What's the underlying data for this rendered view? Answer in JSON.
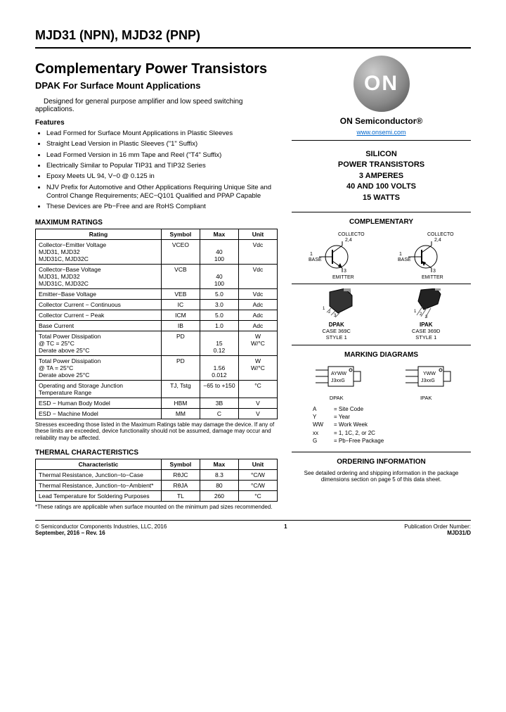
{
  "header": {
    "part_number": "MJD31 (NPN), MJD32 (PNP)",
    "title": "Complementary Power Transistors",
    "subtitle": "DPAK For Surface Mount Applications",
    "intro": "Designed for general purpose amplifier and low speed switching applications.",
    "features_label": "Features",
    "features": [
      "Lead Formed for Surface Mount Applications in Plastic Sleeves",
      "Straight Lead Version in Plastic Sleeves (\"1\" Suffix)",
      "Lead Formed Version in 16 mm Tape and Reel (\"T4\" Suffix)",
      "Electrically Similar to Popular TIP31 and TIP32 Series",
      "Epoxy Meets UL 94, V−0 @ 0.125 in",
      "NJV Prefix for Automotive and Other Applications Requiring Unique Site and Control Change Requirements; AEC−Q101 Qualified and PPAP Capable",
      "These Devices are Pb−Free and are RoHS Compliant"
    ]
  },
  "logo": {
    "text": "ON",
    "brand": "ON Semiconductor®",
    "url": "www.onsemi.com"
  },
  "spec_box": {
    "l1": "SILICON",
    "l2": "POWER TRANSISTORS",
    "l3": "3 AMPERES",
    "l4": "40 AND 100 VOLTS",
    "l5": "15 WATTS"
  },
  "complementary": {
    "label": "COMPLEMENTARY",
    "collector": "COLLECTOR",
    "base": "BASE",
    "emitter": "EMITTER",
    "pin24": "2,4",
    "pin1": "1",
    "pin3": "3"
  },
  "packages": {
    "dpak": {
      "name": "DPAK",
      "case": "CASE 369C",
      "style": "STYLE 1"
    },
    "ipak": {
      "name": "IPAK",
      "case": "CASE 369D",
      "style": "STYLE 1"
    }
  },
  "marking": {
    "label": "MARKING DIAGRAMS",
    "dpak_top": "AYWW",
    "dpak_bot": "J3xxG",
    "ipak_top": "YWW",
    "ipak_bot": "J3xxG",
    "dpak_name": "DPAK",
    "ipak_name": "IPAK",
    "legend": [
      {
        "k": "A",
        "v": "= Site Code"
      },
      {
        "k": "Y",
        "v": "= Year"
      },
      {
        "k": "WW",
        "v": "= Work Week"
      },
      {
        "k": "xx",
        "v": "= 1, 1C, 2, or 2C"
      },
      {
        "k": "G",
        "v": "= Pb−Free Package"
      }
    ]
  },
  "ordering": {
    "label": "ORDERING INFORMATION",
    "text": "See detailed ordering and shipping information in the package dimensions section on page 5 of this data sheet."
  },
  "max_ratings": {
    "title": "MAXIMUM RATINGS",
    "cols": [
      "Rating",
      "Symbol",
      "Max",
      "Unit"
    ],
    "rows": [
      [
        "Collector−Emitter Voltage\n  MJD31, MJD32\n  MJD31C, MJD32C",
        "VCEO",
        "\n40\n100",
        "Vdc"
      ],
      [
        "Collector−Base Voltage\n  MJD31, MJD32\n  MJD31C, MJD32C",
        "VCB",
        "\n40\n100",
        "Vdc"
      ],
      [
        "Emitter−Base Voltage",
        "VEB",
        "5.0",
        "Vdc"
      ],
      [
        "Collector Current − Continuous",
        "IC",
        "3.0",
        "Adc"
      ],
      [
        "Collector Current − Peak",
        "ICM",
        "5.0",
        "Adc"
      ],
      [
        "Base Current",
        "IB",
        "1.0",
        "Adc"
      ],
      [
        "Total Power Dissipation\n  @ TC = 25°C\n  Derate above 25°C",
        "PD",
        "\n15\n0.12",
        "W\nW/°C"
      ],
      [
        "Total Power Dissipation\n  @ TA = 25°C\n  Derate above 25°C",
        "PD",
        "\n1.56\n0.012",
        "W\nW/°C"
      ],
      [
        "Operating and Storage Junction Temperature Range",
        "TJ, Tstg",
        "−65 to +150",
        "°C"
      ],
      [
        "ESD − Human Body Model",
        "HBM",
        "3B",
        "V"
      ],
      [
        "ESD − Machine Model",
        "MM",
        "C",
        "V"
      ]
    ],
    "note": "Stresses exceeding those listed in the Maximum Ratings table may damage the device. If any of these limits are exceeded, device functionality should not be assumed, damage may occur and reliability may be affected."
  },
  "thermal": {
    "title": "THERMAL CHARACTERISTICS",
    "cols": [
      "Characteristic",
      "Symbol",
      "Max",
      "Unit"
    ],
    "rows": [
      [
        "Thermal Resistance, Junction−to−Case",
        "RθJC",
        "8.3",
        "°C/W"
      ],
      [
        "Thermal Resistance, Junction−to−Ambient*",
        "RθJA",
        "80",
        "°C/W"
      ],
      [
        "Lead Temperature for Soldering Purposes",
        "TL",
        "260",
        "°C"
      ]
    ],
    "note": "*These ratings are applicable when surface mounted on the minimum pad sizes recommended."
  },
  "footer": {
    "left1": "© Semiconductor Components Industries, LLC, 2016",
    "left2": "September, 2016 − Rev. 16",
    "page": "1",
    "right1": "Publication Order Number:",
    "right2": "MJD31/D"
  }
}
